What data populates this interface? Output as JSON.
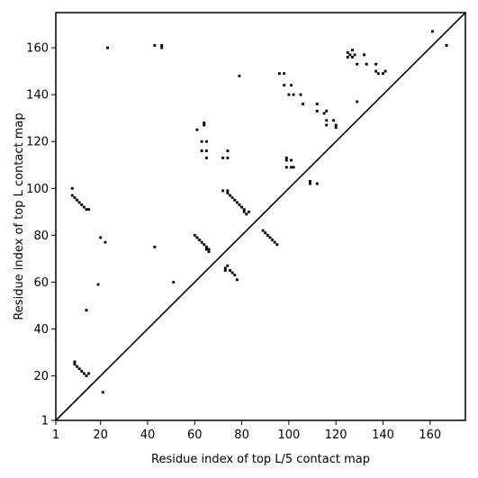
{
  "chart_data": {
    "type": "scatter",
    "title": "",
    "xlabel": "Residue index of top L/5 contact map",
    "ylabel": "Residue index of top L contact map",
    "xlim": [
      1,
      175
    ],
    "ylim": [
      1,
      175
    ],
    "xticks": [
      1,
      20,
      40,
      60,
      80,
      100,
      120,
      140,
      160
    ],
    "yticks": [
      1,
      20,
      40,
      60,
      80,
      100,
      120,
      140,
      160
    ],
    "grid": false,
    "diagonal": true,
    "marker": "square",
    "point_color": "#000000",
    "series": [
      {
        "values_note": "",
        "points": [
          [
            8,
            100
          ],
          [
            8,
            97
          ],
          [
            9,
            96
          ],
          [
            10,
            95
          ],
          [
            11,
            94
          ],
          [
            12,
            93
          ],
          [
            13,
            92
          ],
          [
            14,
            91
          ],
          [
            15,
            91
          ],
          [
            9,
            26
          ],
          [
            9,
            25
          ],
          [
            10,
            24
          ],
          [
            11,
            23
          ],
          [
            12,
            22
          ],
          [
            13,
            21
          ],
          [
            14,
            20
          ],
          [
            15,
            21
          ],
          [
            14,
            48
          ],
          [
            19,
            59
          ],
          [
            20,
            79
          ],
          [
            21,
            13
          ],
          [
            22,
            77
          ],
          [
            23,
            160
          ],
          [
            43,
            161
          ],
          [
            43,
            75
          ],
          [
            46,
            161
          ],
          [
            46,
            160
          ],
          [
            51,
            60
          ],
          [
            60,
            80
          ],
          [
            61,
            79
          ],
          [
            61,
            125
          ],
          [
            62,
            78
          ],
          [
            63,
            77
          ],
          [
            63,
            120
          ],
          [
            63,
            116
          ],
          [
            64,
            76
          ],
          [
            64,
            128
          ],
          [
            64,
            127
          ],
          [
            65,
            75
          ],
          [
            65,
            74
          ],
          [
            65,
            120
          ],
          [
            65,
            116
          ],
          [
            65,
            113
          ],
          [
            66,
            73
          ],
          [
            66,
            74
          ],
          [
            72,
            99
          ],
          [
            72,
            113
          ],
          [
            73,
            66
          ],
          [
            73,
            65
          ],
          [
            74,
            99
          ],
          [
            74,
            98
          ],
          [
            74,
            67
          ],
          [
            74,
            116
          ],
          [
            74,
            113
          ],
          [
            75,
            65
          ],
          [
            75,
            97
          ],
          [
            76,
            96
          ],
          [
            76,
            64
          ],
          [
            77,
            95
          ],
          [
            77,
            63
          ],
          [
            78,
            94
          ],
          [
            78,
            61
          ],
          [
            79,
            93
          ],
          [
            79,
            148
          ],
          [
            80,
            92
          ],
          [
            81,
            91
          ],
          [
            81,
            90
          ],
          [
            82,
            89
          ],
          [
            83,
            90
          ],
          [
            89,
            82
          ],
          [
            90,
            81
          ],
          [
            91,
            80
          ],
          [
            92,
            79
          ],
          [
            93,
            78
          ],
          [
            94,
            77
          ],
          [
            95,
            76
          ],
          [
            96,
            149
          ],
          [
            98,
            144
          ],
          [
            98,
            149
          ],
          [
            99,
            113
          ],
          [
            99,
            112
          ],
          [
            99,
            109
          ],
          [
            100,
            140
          ],
          [
            101,
            144
          ],
          [
            101,
            112
          ],
          [
            101,
            109
          ],
          [
            102,
            140
          ],
          [
            102,
            109
          ],
          [
            105,
            140
          ],
          [
            106,
            136
          ],
          [
            109,
            103
          ],
          [
            109,
            102
          ],
          [
            112,
            102
          ],
          [
            112,
            136
          ],
          [
            112,
            133
          ],
          [
            115,
            132
          ],
          [
            116,
            133
          ],
          [
            116,
            129
          ],
          [
            116,
            127
          ],
          [
            119,
            129
          ],
          [
            120,
            127
          ],
          [
            120,
            126
          ],
          [
            125,
            158
          ],
          [
            125,
            156
          ],
          [
            126,
            157
          ],
          [
            127,
            159
          ],
          [
            127,
            156
          ],
          [
            128,
            157
          ],
          [
            129,
            153
          ],
          [
            129,
            137
          ],
          [
            132,
            157
          ],
          [
            133,
            153
          ],
          [
            137,
            153
          ],
          [
            137,
            150
          ],
          [
            138,
            149
          ],
          [
            140,
            149
          ],
          [
            141,
            150
          ],
          [
            161,
            167
          ],
          [
            167,
            161
          ]
        ]
      }
    ]
  }
}
